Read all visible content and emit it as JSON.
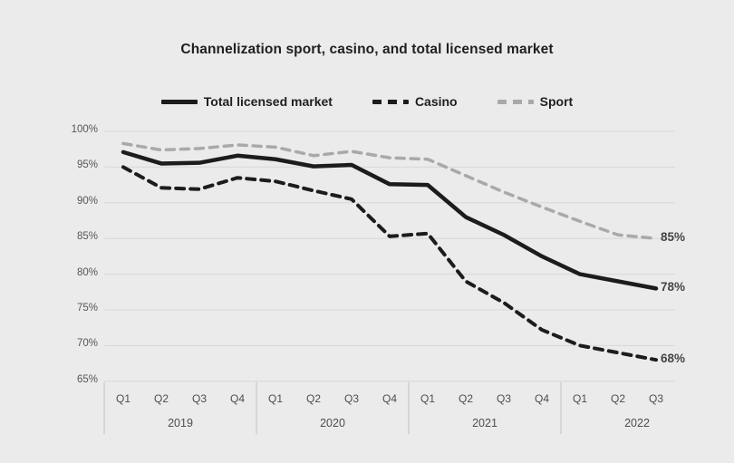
{
  "page": {
    "background_color": "#ebebeb"
  },
  "chart_data": {
    "type": "line",
    "title": "Channelization sport, casino, and total licensed market",
    "grid": true,
    "legend_position": "top",
    "y_axis_range": [
      65,
      100
    ],
    "y_ticks": [
      "100%",
      "95%",
      "90%",
      "85%",
      "80%",
      "75%",
      "70%",
      "65%"
    ],
    "x_groups": [
      {
        "year": "2019",
        "quarters": [
          "Q1",
          "Q2",
          "Q3",
          "Q4"
        ]
      },
      {
        "year": "2020",
        "quarters": [
          "Q1",
          "Q2",
          "Q3",
          "Q4"
        ]
      },
      {
        "year": "2021",
        "quarters": [
          "Q1",
          "Q2",
          "Q3",
          "Q4"
        ]
      },
      {
        "year": "2022",
        "quarters": [
          "Q1",
          "Q2",
          "Q3"
        ]
      }
    ],
    "series": [
      {
        "name": "Total licensed market",
        "style": "solid",
        "color": "#1c1c1c",
        "end_label": "78%",
        "values": [
          97.1,
          95.5,
          95.6,
          96.6,
          96.1,
          95.1,
          95.3,
          92.6,
          92.5,
          88,
          85.5,
          82.5,
          80,
          79,
          78
        ]
      },
      {
        "name": "Casino",
        "style": "dashed",
        "color": "#1c1c1c",
        "end_label": "68%",
        "values": [
          95,
          92.1,
          91.9,
          93.5,
          93,
          91.7,
          90.5,
          85.3,
          85.7,
          79,
          76,
          72.2,
          70,
          69,
          68
        ]
      },
      {
        "name": "Sport",
        "style": "dashed",
        "color": "#a9a9a9",
        "end_label": "85%",
        "values": [
          98.3,
          97.4,
          97.6,
          98.1,
          97.8,
          96.6,
          97.2,
          96.3,
          96.1,
          93.8,
          91.5,
          89.4,
          87.4,
          85.5,
          85
        ]
      }
    ]
  }
}
